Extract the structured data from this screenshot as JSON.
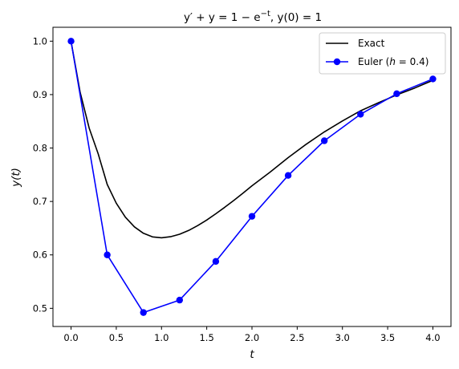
{
  "chart_data": {
    "type": "line",
    "title_parts": [
      "y′ + y = 1 − e",
      "−t",
      ", y(0) = 1"
    ],
    "xlabel": "t",
    "ylabel": "y(t)",
    "xlim": [
      -0.2,
      4.2
    ],
    "ylim": [
      0.466,
      1.026
    ],
    "xticks": [
      0.0,
      0.5,
      1.0,
      1.5,
      2.0,
      2.5,
      3.0,
      3.5,
      4.0
    ],
    "xtick_labels": [
      "0.0",
      "0.5",
      "1.0",
      "1.5",
      "2.0",
      "2.5",
      "3.0",
      "3.5",
      "4.0"
    ],
    "yticks": [
      0.5,
      0.6,
      0.7,
      0.8,
      0.9,
      1.0
    ],
    "ytick_labels": [
      "0.5",
      "0.6",
      "0.7",
      "0.8",
      "0.9",
      "1.0"
    ],
    "grid": false,
    "legend_position": "top-right",
    "series": [
      {
        "name": "Exact",
        "color": "#000000",
        "marker": "none",
        "x": [
          0.0,
          0.1,
          0.2,
          0.3,
          0.4,
          0.5,
          0.6,
          0.7,
          0.8,
          0.9,
          1.0,
          1.1,
          1.2,
          1.3,
          1.4,
          1.5,
          1.6,
          1.7,
          1.8,
          1.9,
          2.0,
          2.2,
          2.4,
          2.6,
          2.8,
          3.0,
          3.2,
          3.4,
          3.6,
          3.8,
          4.0
        ],
        "y": [
          1.0,
          0.9048,
          0.8375,
          0.789,
          0.7319,
          0.6967,
          0.6707,
          0.6524,
          0.6404,
          0.6337,
          0.6321,
          0.634,
          0.6386,
          0.6457,
          0.6548,
          0.6653,
          0.6769,
          0.6892,
          0.7021,
          0.7153,
          0.7293,
          0.7549,
          0.7821,
          0.8071,
          0.8303,
          0.8507,
          0.8697,
          0.8849,
          0.8994,
          0.9123,
          0.9267
        ]
      },
      {
        "name_parts": [
          "Euler (",
          "h",
          " = 0.4)"
        ],
        "color": "#0000ff",
        "marker": "circle",
        "x": [
          0.0,
          0.4,
          0.8,
          1.2,
          1.6,
          2.0,
          2.4,
          2.8,
          3.2,
          3.6,
          4.0
        ],
        "y": [
          1.0,
          0.6,
          0.4921,
          0.5154,
          0.5878,
          0.6722,
          0.7487,
          0.8136,
          0.8633,
          0.9016,
          0.9293
        ]
      }
    ]
  }
}
